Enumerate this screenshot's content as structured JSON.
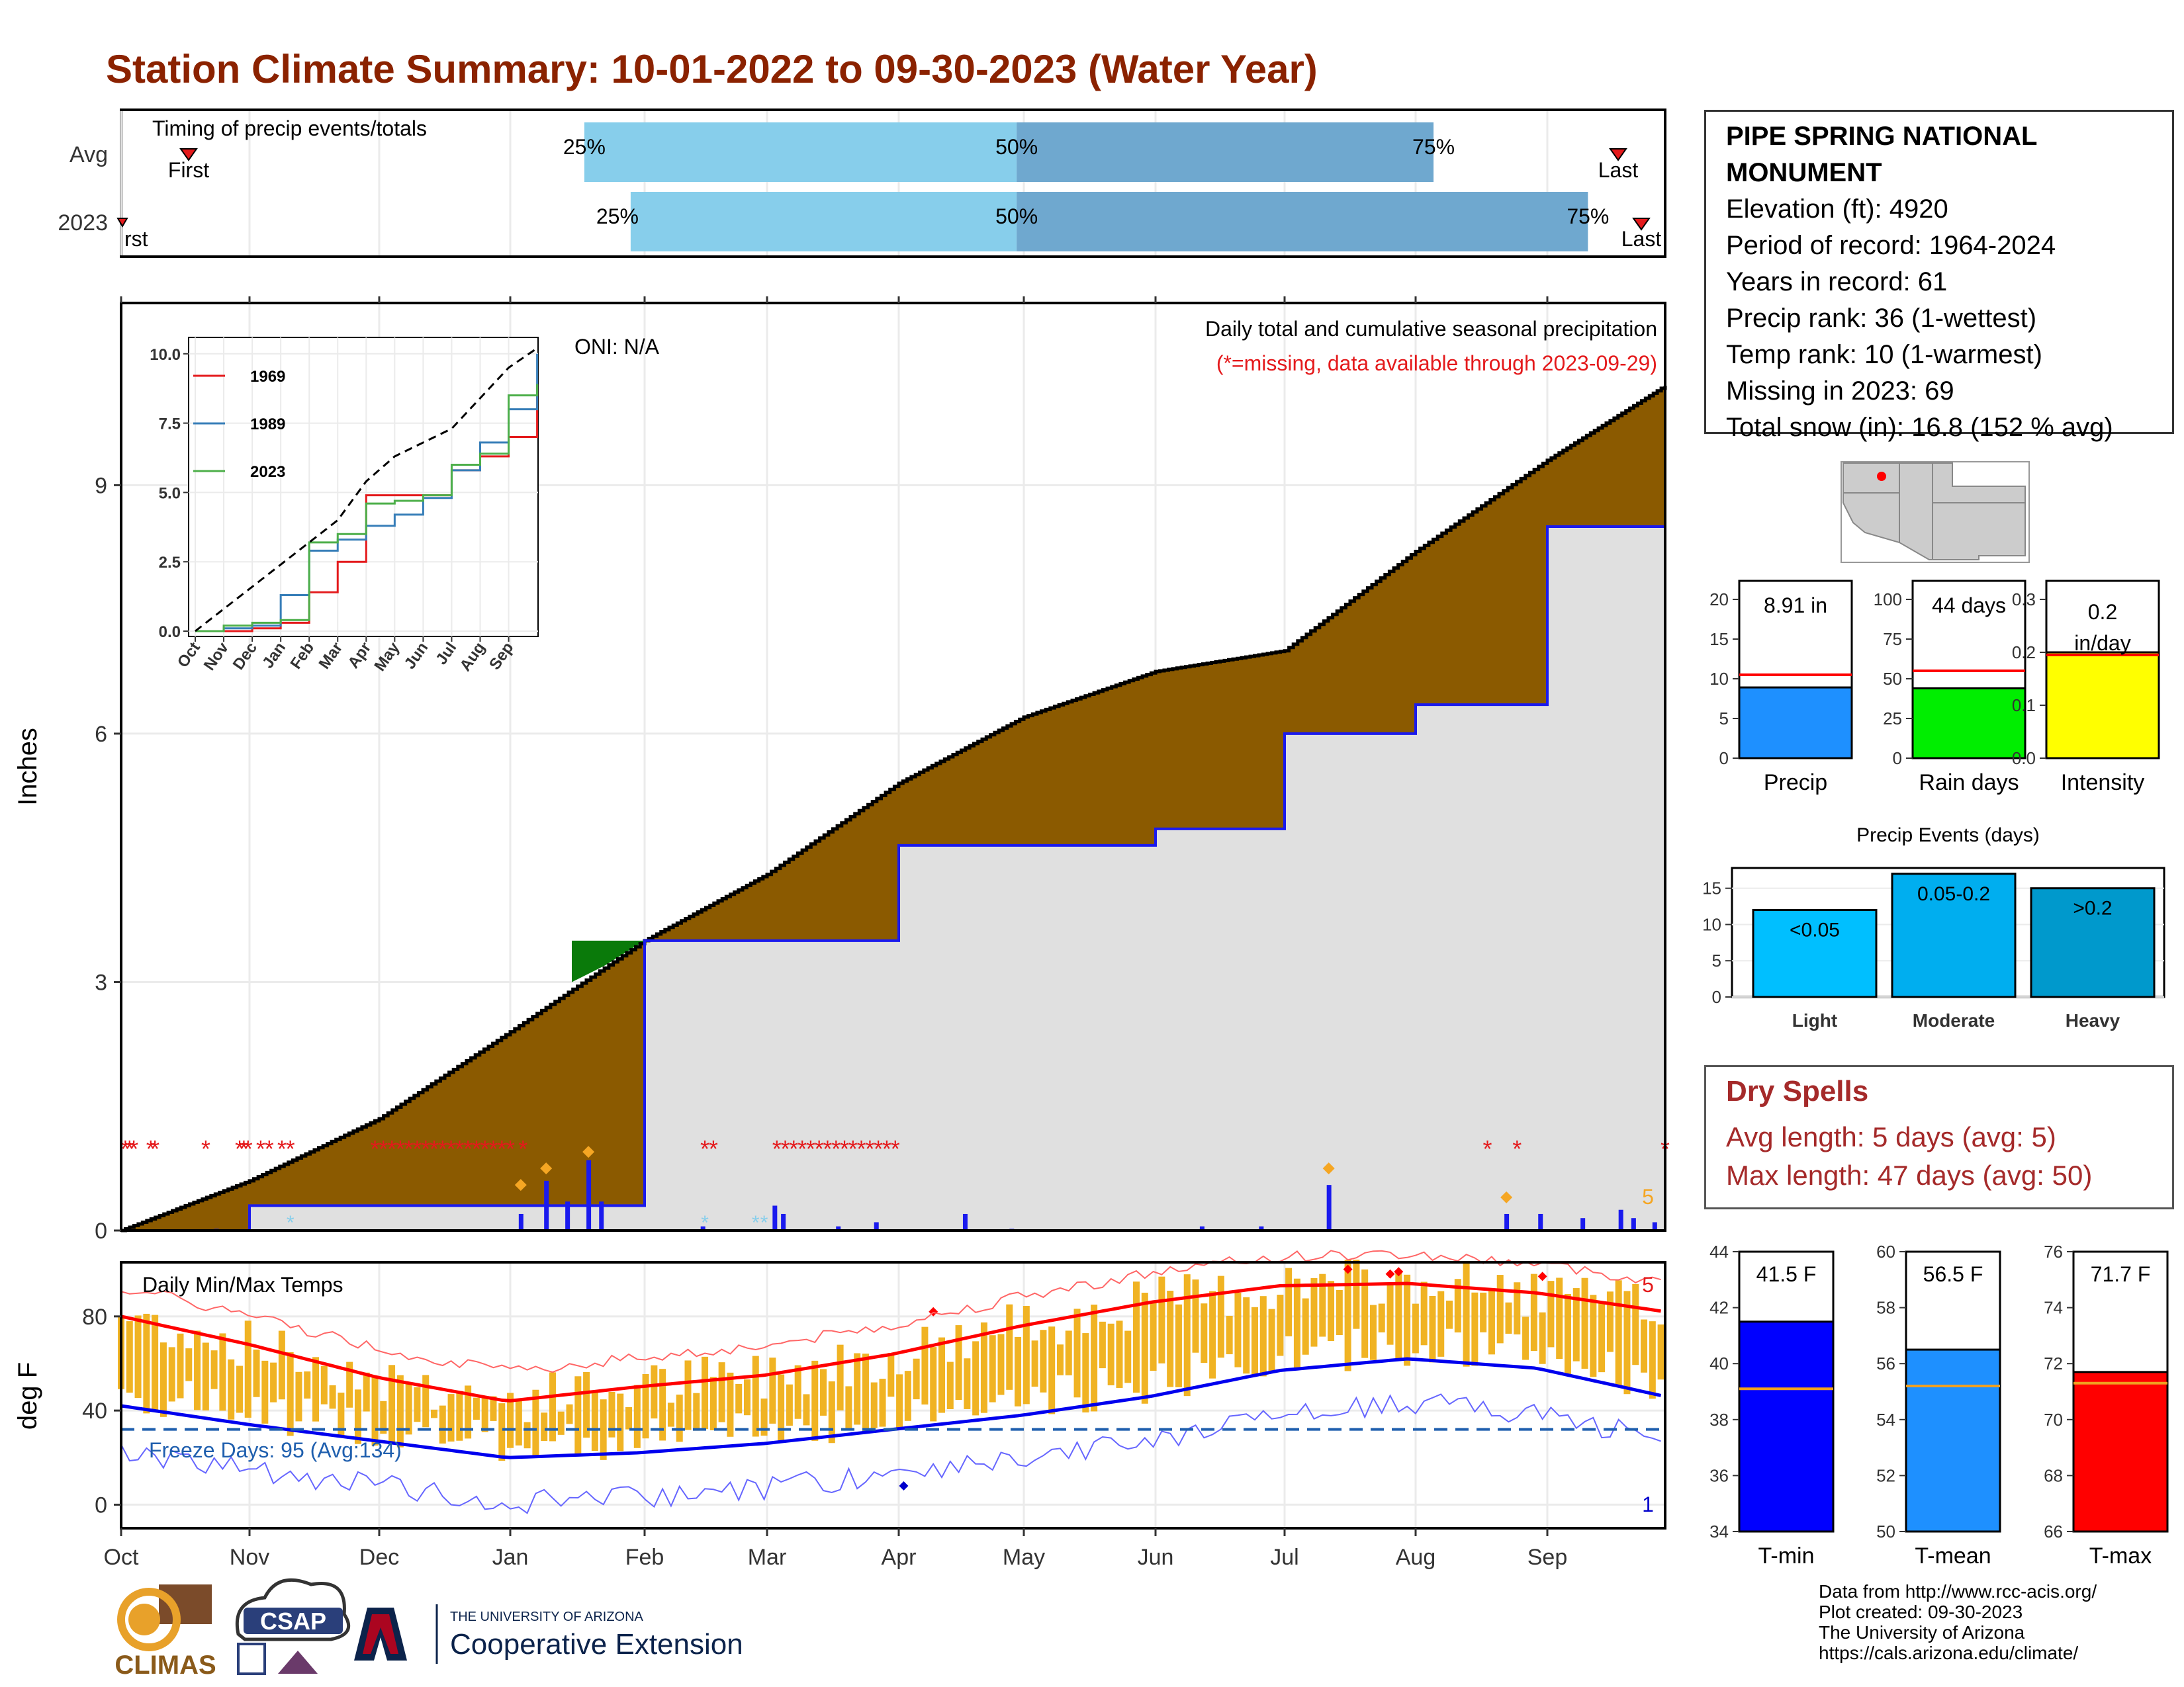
{
  "title": "Station Climate Summary: 10-01-2022 to 09-30-2023 (Water Year)",
  "timing": {
    "label": "Timing of precip events/totals",
    "rows": [
      "Avg",
      "2023"
    ],
    "first_label": "First",
    "last_label": "Last",
    "avg": {
      "p25": 0.3,
      "p50": 0.58,
      "p75": 0.85
    },
    "y2023": {
      "p25": 0.33,
      "p50": 0.58,
      "p75": 0.95
    },
    "pct_labels": [
      "25%",
      "50%",
      "75%"
    ]
  },
  "main": {
    "ylabel": "Inches",
    "title": "Daily total and cumulative seasonal precipitation",
    "subtitle": "(*=missing, data available through 2023-09-29)",
    "oni": "ONI: N/A",
    "yticks": [
      "0",
      "3",
      "6",
      "9"
    ],
    "count_label": "5",
    "inset": {
      "yticks": [
        "0.0",
        "2.5",
        "5.0",
        "7.5",
        "10.0"
      ],
      "xticks": [
        "Oct",
        "Nov",
        "Dec",
        "Jan",
        "Feb",
        "Mar",
        "Apr",
        "May",
        "Jun",
        "Jul",
        "Aug",
        "Sep"
      ],
      "legend": [
        "1969",
        "1989",
        "2023"
      ]
    }
  },
  "temps": {
    "ylabel": "deg F",
    "label": "Daily Min/Max Temps",
    "freeze": "Freeze Days: 95 (Avg:134)",
    "yticks": [
      "0",
      "40",
      "80"
    ],
    "max_count": "5",
    "min_count": "1"
  },
  "xaxis": [
    "Oct",
    "Nov",
    "Dec",
    "Jan",
    "Feb",
    "Mar",
    "Apr",
    "May",
    "Jun",
    "Jul",
    "Aug",
    "Sep"
  ],
  "station": {
    "name": "PIPE SPRING NATIONAL MONUMENT",
    "elevation": "Elevation (ft): 4920",
    "period": "Period of record: 1964-2024",
    "years": "Years in record: 61",
    "precip_rank": "Precip rank: 36 (1-wettest)",
    "temp_rank": "Temp rank: 10 (1-warmest)",
    "missing": "Missing in 2023: 69",
    "snow": "Total snow (in): 16.8 (152 % avg)"
  },
  "mini_bars": [
    {
      "label": "Precip",
      "value_text": "8.91 in",
      "value": 8.91,
      "avg": 10.5,
      "max": 20,
      "ticks": [
        "0",
        "5",
        "10",
        "15",
        "20"
      ],
      "color": "#1e90ff"
    },
    {
      "label": "Rain days",
      "value_text": "44 days",
      "value": 44,
      "avg": 55,
      "max": 100,
      "ticks": [
        "0",
        "25",
        "50",
        "75",
        "100"
      ],
      "color": "#00ee00"
    },
    {
      "label": "Intensity",
      "value_text": "0.2 in/day",
      "value": 0.2,
      "avg": 0.195,
      "max": 0.3,
      "ticks": [
        "0.0",
        "0.1",
        "0.2",
        "0.3"
      ],
      "color": "#ffff00"
    }
  ],
  "events": {
    "title": "Precip Events (days)",
    "ticks": [
      "0",
      "5",
      "10",
      "15"
    ],
    "bars": [
      {
        "label": "Light",
        "range": "<0.05",
        "value": 12,
        "color": "#00bfff"
      },
      {
        "label": "Moderate",
        "range": "0.05-0.2",
        "value": 17,
        "color": "#00aeef"
      },
      {
        "label": "Heavy",
        "range": ">0.2",
        "value": 15,
        "color": "#0099cc"
      }
    ]
  },
  "dry_spells": {
    "title": "Dry Spells",
    "avg": "Avg length: 5 days (avg: 5)",
    "max": "Max length: 47 days (avg: 50)"
  },
  "temp_bars": [
    {
      "label": "T-min",
      "value_text": "41.5 F",
      "value": 41.5,
      "avg": 39.1,
      "min": 34,
      "max": 44,
      "ticks": [
        "34",
        "36",
        "38",
        "40",
        "42",
        "44"
      ],
      "color": "#0000ff"
    },
    {
      "label": "T-mean",
      "value_text": "56.5 F",
      "value": 56.5,
      "avg": 55.2,
      "min": 50,
      "max": 60,
      "ticks": [
        "50",
        "52",
        "54",
        "56",
        "58",
        "60"
      ],
      "color": "#1e90ff"
    },
    {
      "label": "T-max",
      "value_text": "71.7 F",
      "value": 71.7,
      "avg": 71.3,
      "min": 66,
      "max": 76,
      "ticks": [
        "66",
        "68",
        "70",
        "72",
        "74",
        "76"
      ],
      "color": "#ff0000"
    }
  ],
  "footer": {
    "source": "Data from http://www.rcc-acis.org/",
    "created": "Plot created: 09-30-2023",
    "org": "The University of Arizona",
    "url": "https://cals.arizona.edu/climate/"
  },
  "logos": {
    "climas": "CLIMAS",
    "csap": "CSAP",
    "ua_small": "THE UNIVERSITY OF ARIZONA",
    "ua_big": "Cooperative Extension"
  },
  "chart_data": [
    {
      "type": "area",
      "title": "Daily total and cumulative seasonal precipitation",
      "ylabel": "Inches",
      "ylim": [
        0,
        11.2
      ],
      "x": [
        "Oct",
        "Nov",
        "Dec",
        "Jan",
        "Feb",
        "Mar",
        "Apr",
        "May",
        "Jun",
        "Jul",
        "Aug",
        "Sep",
        "Sep-30"
      ],
      "series": [
        {
          "values": [
            0.0,
            0.6,
            1.35,
            2.4,
            3.5,
            4.3,
            5.4,
            6.2,
            6.75,
            7.0,
            8.2,
            9.3,
            10.2
          ]
        },
        {
          "values": [
            0.0,
            0.3,
            0.3,
            0.3,
            3.5,
            3.5,
            4.65,
            4.65,
            4.85,
            6.0,
            6.35,
            8.5,
            8.91
          ]
        }
      ]
    },
    {
      "type": "line",
      "title": "Daily Min/Max Temps",
      "ylabel": "deg F",
      "ylim": [
        -10,
        103
      ],
      "x": [
        "Oct",
        "Nov",
        "Dec",
        "Jan",
        "Feb",
        "Mar",
        "Apr",
        "May",
        "Jun",
        "Jul",
        "Aug",
        "Sep",
        "Sep-30"
      ],
      "series": [
        {
          "values": [
            80,
            68,
            54,
            44,
            50,
            55,
            64,
            76,
            86,
            93,
            94,
            90,
            82
          ]
        },
        {
          "values": [
            42,
            34,
            27,
            20,
            22,
            26,
            32,
            38,
            46,
            57,
            62,
            58,
            46
          ]
        }
      ]
    }
  ]
}
